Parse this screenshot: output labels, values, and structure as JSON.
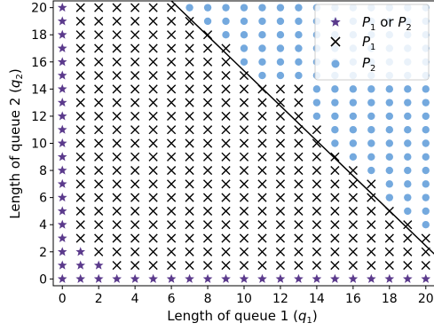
{
  "chart_data": {
    "type": "scatter",
    "xlabel": "Length of queue 1 (q1)",
    "ylabel": "Length of queue 2 (q2)",
    "xlim": [
      -0.5,
      20.5
    ],
    "ylim": [
      -0.5,
      20.5
    ],
    "xticks": [
      0,
      2,
      4,
      6,
      8,
      10,
      12,
      14,
      16,
      18,
      20
    ],
    "yticks": [
      0,
      2,
      4,
      6,
      8,
      10,
      12,
      14,
      16,
      18,
      20
    ],
    "grid": false,
    "legend_position": "top-right",
    "series": [
      {
        "name": "P1 or P2",
        "marker": "star",
        "color": "#5b3a8c",
        "points": [
          [
            0,
            0
          ],
          [
            1,
            0
          ],
          [
            2,
            0
          ],
          [
            3,
            0
          ],
          [
            4,
            0
          ],
          [
            5,
            0
          ],
          [
            6,
            0
          ],
          [
            7,
            0
          ],
          [
            8,
            0
          ],
          [
            9,
            0
          ],
          [
            10,
            0
          ],
          [
            11,
            0
          ],
          [
            12,
            0
          ],
          [
            13,
            0
          ],
          [
            14,
            0
          ],
          [
            15,
            0
          ],
          [
            16,
            0
          ],
          [
            17,
            0
          ],
          [
            18,
            0
          ],
          [
            19,
            0
          ],
          [
            20,
            0
          ],
          [
            0,
            1
          ],
          [
            0,
            2
          ],
          [
            0,
            3
          ],
          [
            0,
            4
          ],
          [
            0,
            5
          ],
          [
            0,
            6
          ],
          [
            0,
            7
          ],
          [
            0,
            8
          ],
          [
            0,
            9
          ],
          [
            0,
            10
          ],
          [
            0,
            11
          ],
          [
            0,
            12
          ],
          [
            0,
            13
          ],
          [
            0,
            14
          ],
          [
            0,
            15
          ],
          [
            0,
            16
          ],
          [
            0,
            17
          ],
          [
            0,
            18
          ],
          [
            0,
            19
          ],
          [
            0,
            20
          ],
          [
            1,
            1
          ],
          [
            1,
            2
          ],
          [
            2,
            1
          ]
        ]
      },
      {
        "name": "P1",
        "marker": "x",
        "color": "#000000",
        "rule": "remaining grid points with q1 >= 1 and q2 >= 1 not in the P1 or P2 or P2 sets"
      },
      {
        "name": "P2",
        "marker": "circle",
        "color": "#74a9de",
        "rows": {
          "20": [
            7,
            20
          ],
          "19": [
            8,
            20
          ],
          "18": [
            9,
            20
          ],
          "17": [
            10,
            20
          ],
          "16": [
            10,
            20
          ],
          "15": [
            11,
            20
          ],
          "14": [
            14,
            20
          ],
          "13": [
            14,
            20
          ],
          "12": [
            14,
            20
          ],
          "11": [
            15,
            20
          ],
          "10": [
            15,
            20
          ],
          "9": [
            16,
            20
          ],
          "8": [
            17,
            20
          ],
          "7": [
            18,
            20
          ],
          "6": [
            18,
            20
          ],
          "5": [
            19,
            20
          ],
          "4": [
            20,
            20
          ],
          "3": [
            21,
            20
          ],
          "2": [
            21,
            20
          ],
          "1": [
            21,
            20
          ]
        }
      }
    ],
    "line": {
      "color": "#000000",
      "points": [
        [
          6,
          20.5
        ],
        [
          20.5,
          1.8
        ]
      ]
    }
  },
  "legend": {
    "items": [
      {
        "marker": "star",
        "base1": "P",
        "sub1": "1",
        "mid": " or ",
        "base2": "P",
        "sub2": "2"
      },
      {
        "marker": "x",
        "base1": "P",
        "sub1": "1"
      },
      {
        "marker": "circle",
        "base1": "P",
        "sub1": "2"
      }
    ]
  },
  "axes": {
    "x_label_main": "Length of queue 1 (",
    "x_label_var": "q",
    "x_label_sub": "1",
    "x_label_end": ")",
    "y_label_main": "Length of queue 2 (",
    "y_label_var": "q",
    "y_label_sub": "2",
    "y_label_end": ")"
  }
}
